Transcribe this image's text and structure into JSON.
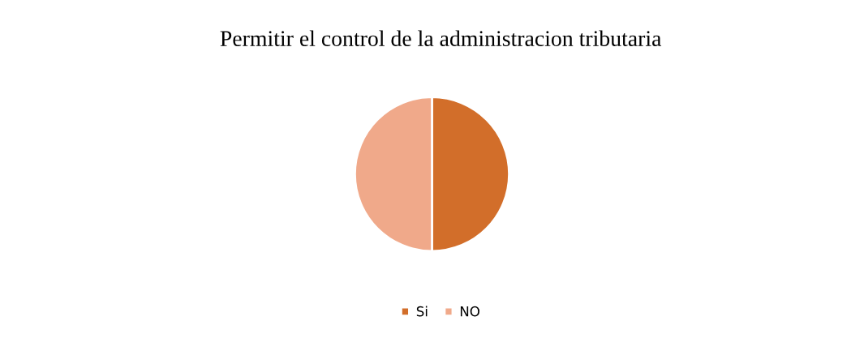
{
  "chart_data": {
    "type": "pie",
    "title": "Permitir el control de la administracion tributaria",
    "categories": [
      "Si",
      "NO"
    ],
    "values": [
      50,
      50
    ],
    "colors": [
      "#d26e2a",
      "#f0a98a"
    ],
    "legend": "bottom"
  }
}
